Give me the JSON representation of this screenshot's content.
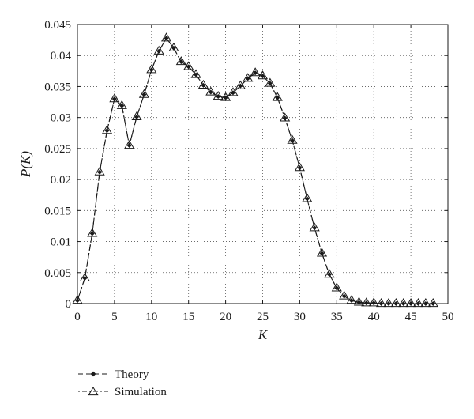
{
  "chart_data": {
    "type": "line",
    "title": "",
    "xlabel": "K",
    "ylabel": "P(K)",
    "xlim": [
      0,
      50
    ],
    "ylim": [
      0,
      0.045
    ],
    "xticks": [
      0,
      5,
      10,
      15,
      20,
      25,
      30,
      35,
      40,
      45,
      50
    ],
    "yticks": [
      0,
      0.005,
      0.01,
      0.015,
      0.02,
      0.025,
      0.03,
      0.035,
      0.04,
      0.045
    ],
    "xtick_labels": [
      "0",
      "5",
      "10",
      "15",
      "20",
      "25",
      "30",
      "35",
      "40",
      "45",
      "50"
    ],
    "ytick_labels": [
      "0",
      "0.005",
      "0.01",
      "0.015",
      "0.02",
      "0.025",
      "0.03",
      "0.035",
      "0.04",
      "0.045"
    ],
    "grid": true,
    "legend_position": "bottom-left",
    "x": [
      0,
      1,
      2,
      3,
      4,
      5,
      6,
      7,
      8,
      9,
      10,
      11,
      12,
      13,
      14,
      15,
      16,
      17,
      18,
      19,
      20,
      21,
      22,
      23,
      24,
      25,
      26,
      27,
      28,
      29,
      30,
      31,
      32,
      33,
      34,
      35,
      36,
      37,
      38,
      39,
      40,
      41,
      42,
      43,
      44,
      45,
      46,
      47,
      48
    ],
    "series": [
      {
        "name": "Theory",
        "marker": "diamond",
        "line_style": "dashed",
        "values": [
          0.0005,
          0.0041,
          0.0113,
          0.0212,
          0.0279,
          0.033,
          0.0319,
          0.0255,
          0.0301,
          0.0337,
          0.0377,
          0.0407,
          0.0428,
          0.0412,
          0.039,
          0.0382,
          0.0369,
          0.0352,
          0.0341,
          0.0334,
          0.0332,
          0.034,
          0.0351,
          0.0363,
          0.0372,
          0.0367,
          0.0355,
          0.0332,
          0.0299,
          0.0263,
          0.0219,
          0.0169,
          0.0122,
          0.0081,
          0.0047,
          0.0025,
          0.0012,
          0.0005,
          0.0002,
          0.0001,
          0.0001,
          0,
          0,
          0,
          0,
          0,
          0,
          0,
          0
        ]
      },
      {
        "name": "Simulation",
        "marker": "triangle",
        "line_style": "dash-dot",
        "values": [
          0.0005,
          0.0041,
          0.0113,
          0.0212,
          0.0279,
          0.033,
          0.0319,
          0.0255,
          0.0301,
          0.0337,
          0.0377,
          0.0407,
          0.0428,
          0.0412,
          0.039,
          0.0382,
          0.0369,
          0.0352,
          0.0341,
          0.0334,
          0.0332,
          0.034,
          0.0351,
          0.0363,
          0.0372,
          0.0367,
          0.0355,
          0.0332,
          0.0299,
          0.0263,
          0.0219,
          0.0169,
          0.0122,
          0.0081,
          0.0047,
          0.0025,
          0.0012,
          0.0005,
          0.0002,
          0.0001,
          0.0001,
          0,
          0,
          0,
          0,
          0,
          0,
          0,
          0
        ]
      }
    ]
  }
}
